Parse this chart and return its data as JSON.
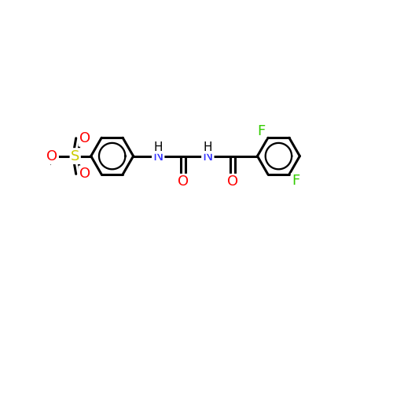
{
  "background_color": "#ffffff",
  "atom_colors": {
    "C": "#000000",
    "H": "#000000",
    "N": "#3333ff",
    "O": "#ff0000",
    "S": "#cccc00",
    "F": "#33cc00",
    "Cl": "#33cc00"
  },
  "bond_color": "#000000",
  "bond_width": 2.2,
  "font_size": 13,
  "fig_size": [
    5.0,
    5.0
  ],
  "dpi": 100
}
